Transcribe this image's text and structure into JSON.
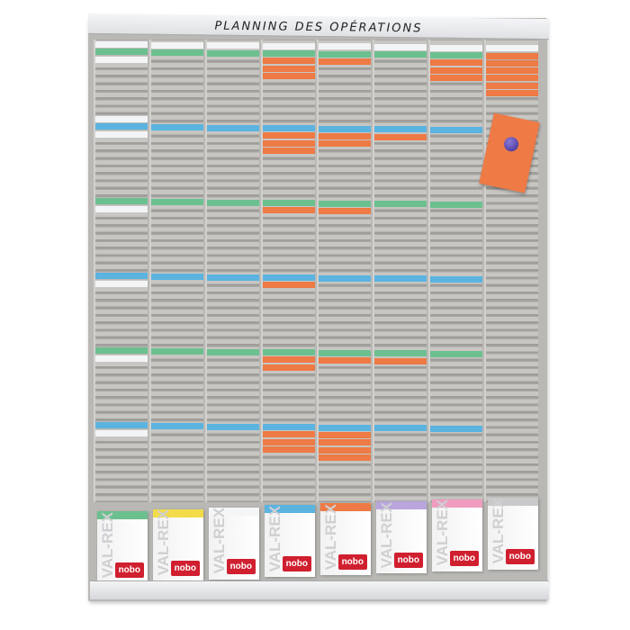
{
  "header": {
    "title": "PLANNING DES OPÉRATIONS"
  },
  "colors": {
    "green": "#6cc08f",
    "blue": "#5bb3e0",
    "orange": "#ee7a45",
    "white": "#f3f4f6",
    "board": "#b9b8b5"
  },
  "columns": [
    {
      "cards": [
        [
          0,
          "white"
        ],
        [
          1,
          "green"
        ],
        [
          2,
          "white"
        ],
        [
          10,
          "white"
        ],
        [
          11,
          "blue"
        ],
        [
          12,
          "white"
        ],
        [
          21,
          "green"
        ],
        [
          22,
          "white"
        ],
        [
          31,
          "blue"
        ],
        [
          32,
          "white"
        ],
        [
          41,
          "green"
        ],
        [
          42,
          "white"
        ],
        [
          51,
          "blue"
        ],
        [
          52,
          "white"
        ]
      ]
    },
    {
      "cards": [
        [
          0,
          "white"
        ],
        [
          1,
          "green"
        ],
        [
          11,
          "blue"
        ],
        [
          21,
          "green"
        ],
        [
          31,
          "blue"
        ],
        [
          41,
          "green"
        ],
        [
          51,
          "blue"
        ]
      ]
    },
    {
      "cards": [
        [
          0,
          "white"
        ],
        [
          1,
          "green"
        ],
        [
          11,
          "blue"
        ],
        [
          21,
          "green"
        ],
        [
          31,
          "blue"
        ],
        [
          41,
          "green"
        ],
        [
          51,
          "blue"
        ]
      ]
    },
    {
      "cards": [
        [
          0,
          "white"
        ],
        [
          1,
          "green"
        ],
        [
          2,
          "orange"
        ],
        [
          3,
          "orange"
        ],
        [
          4,
          "orange"
        ],
        [
          11,
          "blue"
        ],
        [
          12,
          "orange"
        ],
        [
          13,
          "orange"
        ],
        [
          14,
          "orange"
        ],
        [
          21,
          "green"
        ],
        [
          22,
          "orange"
        ],
        [
          31,
          "blue"
        ],
        [
          32,
          "orange"
        ],
        [
          41,
          "green"
        ],
        [
          42,
          "orange"
        ],
        [
          43,
          "orange"
        ],
        [
          51,
          "blue"
        ],
        [
          52,
          "orange"
        ],
        [
          53,
          "orange"
        ],
        [
          54,
          "orange"
        ]
      ]
    },
    {
      "cards": [
        [
          0,
          "white"
        ],
        [
          1,
          "green"
        ],
        [
          2,
          "orange"
        ],
        [
          11,
          "blue"
        ],
        [
          12,
          "orange"
        ],
        [
          13,
          "orange"
        ],
        [
          21,
          "green"
        ],
        [
          22,
          "orange"
        ],
        [
          31,
          "blue"
        ],
        [
          41,
          "green"
        ],
        [
          42,
          "orange"
        ],
        [
          51,
          "blue"
        ],
        [
          52,
          "orange"
        ],
        [
          53,
          "orange"
        ],
        [
          54,
          "orange"
        ],
        [
          55,
          "orange"
        ]
      ]
    },
    {
      "cards": [
        [
          0,
          "white"
        ],
        [
          1,
          "green"
        ],
        [
          11,
          "blue"
        ],
        [
          12,
          "orange"
        ],
        [
          21,
          "green"
        ],
        [
          31,
          "blue"
        ],
        [
          41,
          "green"
        ],
        [
          42,
          "orange"
        ],
        [
          51,
          "blue"
        ]
      ]
    },
    {
      "cards": [
        [
          0,
          "white"
        ],
        [
          1,
          "green"
        ],
        [
          2,
          "orange"
        ],
        [
          3,
          "orange"
        ],
        [
          4,
          "orange"
        ],
        [
          11,
          "blue"
        ],
        [
          21,
          "green"
        ],
        [
          31,
          "blue"
        ],
        [
          41,
          "green"
        ],
        [
          51,
          "blue"
        ]
      ]
    },
    {
      "cards": [
        [
          0,
          "white"
        ],
        [
          1,
          "orange"
        ],
        [
          2,
          "orange"
        ],
        [
          3,
          "orange"
        ],
        [
          4,
          "orange"
        ],
        [
          5,
          "orange"
        ],
        [
          6,
          "orange"
        ]
      ]
    }
  ],
  "boxes": [
    {
      "lid": "#6cc08f",
      "brand": "VAL-REX",
      "logo": "nobo"
    },
    {
      "lid": "#f2dc4a",
      "brand": "VAL-REX",
      "logo": "nobo"
    },
    {
      "lid": "#f5f6f8",
      "brand": "VAL-REX",
      "logo": "nobo"
    },
    {
      "lid": "#5bb3e0",
      "brand": "VAL-REX",
      "logo": "nobo"
    },
    {
      "lid": "#ee7a45",
      "brand": "VAL-REX",
      "logo": "nobo"
    },
    {
      "lid": "#b8a6dc",
      "brand": "VAL-REX",
      "logo": "nobo"
    },
    {
      "lid": "#ef9cc0",
      "brand": "VAL-REX",
      "logo": "nobo"
    },
    {
      "lid": "#c9c9c9",
      "brand": "VAL-REX",
      "logo": "nobo"
    }
  ]
}
